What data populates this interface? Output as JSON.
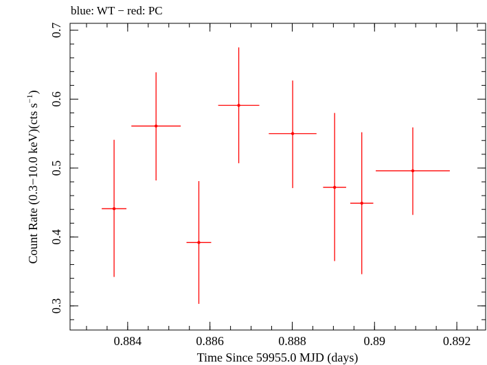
{
  "chart_data": {
    "type": "scatter",
    "title": "blue: WT − red: PC",
    "xlabel": "Time Since 59955.0 MJD (days)",
    "ylabel_main": "Count Rate (0.3−10.0 keV)(cts s",
    "ylabel_sup": "−1",
    "ylabel_end": ")",
    "xlim": [
      0.8826,
      0.8927
    ],
    "ylim": [
      0.265,
      0.71
    ],
    "x_ticks": [
      0.884,
      0.886,
      0.888,
      0.89,
      0.892
    ],
    "x_tick_labels": [
      "0.884",
      "0.886",
      "0.888",
      "0.89",
      "0.892"
    ],
    "y_ticks": [
      0.3,
      0.4,
      0.5,
      0.6,
      0.7
    ],
    "y_tick_labels": [
      "0.3",
      "0.4",
      "0.5",
      "0.6",
      "0.7"
    ],
    "grid": false,
    "series": [
      {
        "color": "#ff0000",
        "points": [
          {
            "x": 0.88367,
            "xerr_lo": 0.0003,
            "xerr_hi": 0.0003,
            "y": 0.441,
            "y_lo": 0.342,
            "y_hi": 0.541
          },
          {
            "x": 0.88469,
            "xerr_lo": 0.0006,
            "xerr_hi": 0.0006,
            "y": 0.561,
            "y_lo": 0.482,
            "y_hi": 0.639
          },
          {
            "x": 0.88573,
            "xerr_lo": 0.0003,
            "xerr_hi": 0.0003,
            "y": 0.392,
            "y_lo": 0.303,
            "y_hi": 0.481
          },
          {
            "x": 0.8867,
            "xerr_lo": 0.0005,
            "xerr_hi": 0.0005,
            "y": 0.591,
            "y_lo": 0.507,
            "y_hi": 0.675
          },
          {
            "x": 0.88801,
            "xerr_lo": 0.00058,
            "xerr_hi": 0.00058,
            "y": 0.55,
            "y_lo": 0.471,
            "y_hi": 0.627
          },
          {
            "x": 0.88903,
            "xerr_lo": 0.00028,
            "xerr_hi": 0.00028,
            "y": 0.472,
            "y_lo": 0.365,
            "y_hi": 0.58
          },
          {
            "x": 0.88969,
            "xerr_lo": 0.00028,
            "xerr_hi": 0.00028,
            "y": 0.449,
            "y_lo": 0.346,
            "y_hi": 0.552
          },
          {
            "x": 0.89093,
            "xerr_lo": 0.0009,
            "xerr_hi": 0.0009,
            "y": 0.496,
            "y_lo": 0.432,
            "y_hi": 0.559
          }
        ]
      }
    ]
  }
}
